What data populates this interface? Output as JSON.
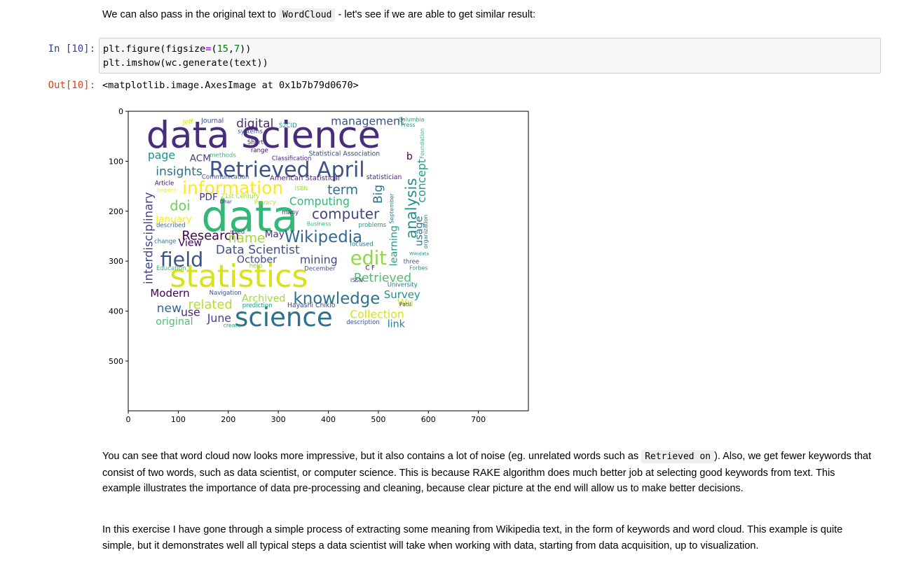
{
  "intro": {
    "before": "We can also pass in the original text to ",
    "code": "WordCloud",
    "after": " - let's see if we are able to get similar result:"
  },
  "cell": {
    "in_prompt": "In [10]:",
    "line1_a": "plt.figure(figsize",
    "line1_op": "=",
    "line1_b": "(",
    "line1_n1": "15",
    "line1_c": ",",
    "line1_n2": "7",
    "line1_d": "))",
    "line2": "plt.imshow(wc.generate(text))",
    "out_prompt": "Out[10]:",
    "out_text": "<matplotlib.image.AxesImage at 0x1b7b79d0670>"
  },
  "plot": {
    "x_ticks": [
      "0",
      "100",
      "200",
      "300",
      "400",
      "500",
      "600",
      "700"
    ],
    "y_ticks": [
      "0",
      "100",
      "200",
      "300",
      "400",
      "500"
    ],
    "words": [
      {
        "t": "data science",
        "c": "#472d7b"
      },
      {
        "t": "data",
        "c": "#35b779"
      },
      {
        "t": "statistics",
        "c": "#d8e219"
      },
      {
        "t": "science",
        "c": "#2c728e"
      },
      {
        "t": "Retrieved April",
        "c": "#3b528b"
      },
      {
        "t": "information",
        "c": "#fde725"
      },
      {
        "t": "Wikipedia",
        "c": "#31688e"
      },
      {
        "t": "knowledge",
        "c": "#2c728e"
      },
      {
        "t": "field",
        "c": "#3b528b"
      },
      {
        "t": "edit",
        "c": "#90d743"
      },
      {
        "t": "computer",
        "c": "#414487"
      },
      {
        "t": "management",
        "c": "#3b528b"
      },
      {
        "t": "digital",
        "c": "#472d7b"
      },
      {
        "t": "insights",
        "c": "#2c728e"
      },
      {
        "t": "Research",
        "c": "#440154"
      },
      {
        "t": "name",
        "c": "#a0da39"
      },
      {
        "t": "Data Scientist",
        "c": "#3b528b"
      },
      {
        "t": "Computing",
        "c": "#35b779"
      },
      {
        "t": "term",
        "c": "#2c728e"
      },
      {
        "t": "analysis",
        "c": "#21918c"
      },
      {
        "t": "interdisciplinary",
        "c": "#414487"
      },
      {
        "t": "related",
        "c": "#b5de2b"
      },
      {
        "t": "Archived",
        "c": "#a0da39"
      },
      {
        "t": "Collection",
        "c": "#d8e219"
      },
      {
        "t": "Retrieved",
        "c": "#4ac16d"
      },
      {
        "t": "Survey",
        "c": "#21918c"
      },
      {
        "t": "Modern",
        "c": "#440154"
      },
      {
        "t": "new",
        "c": "#31688e"
      },
      {
        "t": "use",
        "c": "#482878"
      },
      {
        "t": "original",
        "c": "#4ac16d"
      },
      {
        "t": "June",
        "c": "#414487"
      },
      {
        "t": "mining",
        "c": "#3e4989"
      },
      {
        "t": "October",
        "c": "#3e4989"
      },
      {
        "t": "May",
        "c": "#472d7b"
      },
      {
        "t": "page",
        "c": "#21918c"
      },
      {
        "t": "ACM",
        "c": "#443983"
      },
      {
        "t": "doi",
        "c": "#6ece58"
      },
      {
        "t": "PDF",
        "c": "#472d7b"
      },
      {
        "t": "January",
        "c": "#fde725"
      },
      {
        "t": "View",
        "c": "#440154"
      },
      {
        "t": "Big",
        "c": "#2c728e"
      },
      {
        "t": "concept",
        "c": "#1f9e89"
      },
      {
        "t": "usage",
        "c": "#2c728e"
      },
      {
        "t": "learning",
        "c": "#1f9e89"
      },
      {
        "t": "link",
        "c": "#26828e"
      },
      {
        "t": "Wu",
        "c": "#d8e219"
      },
      {
        "t": "Statistical Association",
        "c": "#3e4989"
      },
      {
        "t": "American Statistical",
        "c": "#482878"
      },
      {
        "t": "statistician",
        "c": "#482878"
      },
      {
        "t": "Jeff",
        "c": "#d8e219"
      },
      {
        "t": "Journal",
        "c": "#414487"
      },
      {
        "t": "Columbia",
        "c": "#1f9e89"
      },
      {
        "t": "Press",
        "c": "#1f9e89"
      },
      {
        "t": "systems",
        "c": "#3e4989"
      },
      {
        "t": "Short",
        "c": "#482878"
      },
      {
        "t": "range",
        "c": "#440154"
      },
      {
        "t": "methods",
        "c": "#35b779"
      },
      {
        "t": "Classification",
        "c": "#472d7b"
      },
      {
        "t": "Communication",
        "c": "#3b528b"
      },
      {
        "t": "Article",
        "c": "#440154"
      },
      {
        "t": "described",
        "c": "#31688e"
      },
      {
        "t": "change",
        "c": "#2c728e"
      },
      {
        "t": "Education",
        "c": "#35b779"
      },
      {
        "t": "Navigation",
        "c": "#3b528b"
      },
      {
        "t": "prediction",
        "c": "#1f9e89"
      },
      {
        "t": "Hayashi Chikio",
        "c": "#3e4989"
      },
      {
        "t": "description",
        "c": "#3b528b"
      },
      {
        "t": "create",
        "c": "#1f9e89"
      },
      {
        "t": "Business",
        "c": "#35b779"
      },
      {
        "t": "problems",
        "c": "#1f9e89"
      },
      {
        "t": "focused",
        "c": "#2c728e"
      },
      {
        "t": "December",
        "c": "#3b528b"
      },
      {
        "t": "ISSN",
        "c": "#414487"
      },
      {
        "t": "University",
        "c": "#2c728e"
      },
      {
        "t": "Patil",
        "c": "#414487"
      },
      {
        "t": "three",
        "c": "#3b528b"
      },
      {
        "t": "Forbes",
        "c": "#21918c"
      },
      {
        "t": "Privacy",
        "c": "#b5de2b"
      },
      {
        "t": "many",
        "c": "#472d7b"
      },
      {
        "t": "used",
        "c": "#3b528b"
      },
      {
        "t": "help",
        "c": "#7ad151"
      },
      {
        "t": "C F",
        "c": "#440154"
      },
      {
        "t": "b",
        "c": "#440154"
      },
      {
        "t": "organization",
        "c": "#2c728e"
      },
      {
        "t": "Foundation",
        "c": "#35b779"
      },
      {
        "t": "S2CID",
        "c": "#21918c"
      },
      {
        "t": "21st Century",
        "c": "#a0da39"
      },
      {
        "t": "Dhar",
        "c": "#472d7b"
      },
      {
        "t": "Impact",
        "c": "#fde725"
      },
      {
        "t": "Wikidata",
        "c": "#21918c"
      },
      {
        "t": "ISBN",
        "c": "#a0da39"
      },
      {
        "t": "September",
        "c": "#2c728e"
      }
    ]
  }
}
